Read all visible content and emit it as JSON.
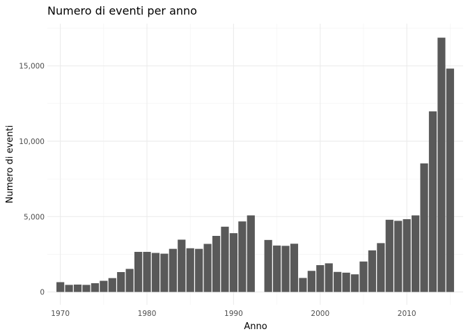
{
  "chart_data": {
    "type": "bar",
    "title": "Numero di eventi per anno",
    "xlabel": "Anno",
    "ylabel": "Numero di eventi",
    "x_ticks": [
      "1970",
      "1980",
      "1990",
      "2000",
      "2010"
    ],
    "y_ticks": [
      "0",
      "5,000",
      "10,000",
      "15,000"
    ],
    "xlim": [
      1968.5,
      2016.5
    ],
    "ylim": [
      -850,
      17800
    ],
    "grid": true,
    "legend": "none",
    "bar_color": "#595959",
    "categories": [
      1970,
      1971,
      1972,
      1973,
      1974,
      1975,
      1976,
      1977,
      1978,
      1979,
      1980,
      1981,
      1982,
      1983,
      1984,
      1985,
      1986,
      1987,
      1988,
      1989,
      1990,
      1991,
      1992,
      1994,
      1995,
      1996,
      1997,
      1998,
      1999,
      2000,
      2001,
      2002,
      2003,
      2004,
      2005,
      2006,
      2007,
      2008,
      2009,
      2010,
      2011,
      2012,
      2013,
      2014,
      2015
    ],
    "values": [
      650,
      470,
      490,
      470,
      580,
      740,
      920,
      1320,
      1530,
      2660,
      2660,
      2590,
      2540,
      2860,
      3470,
      2900,
      2860,
      3190,
      3720,
      4330,
      3900,
      4680,
      5080,
      3450,
      3080,
      3060,
      3200,
      930,
      1400,
      1780,
      1900,
      1330,
      1280,
      1170,
      2020,
      2760,
      3240,
      4790,
      4720,
      4830,
      5080,
      8530,
      11980,
      16870,
      14820
    ]
  }
}
